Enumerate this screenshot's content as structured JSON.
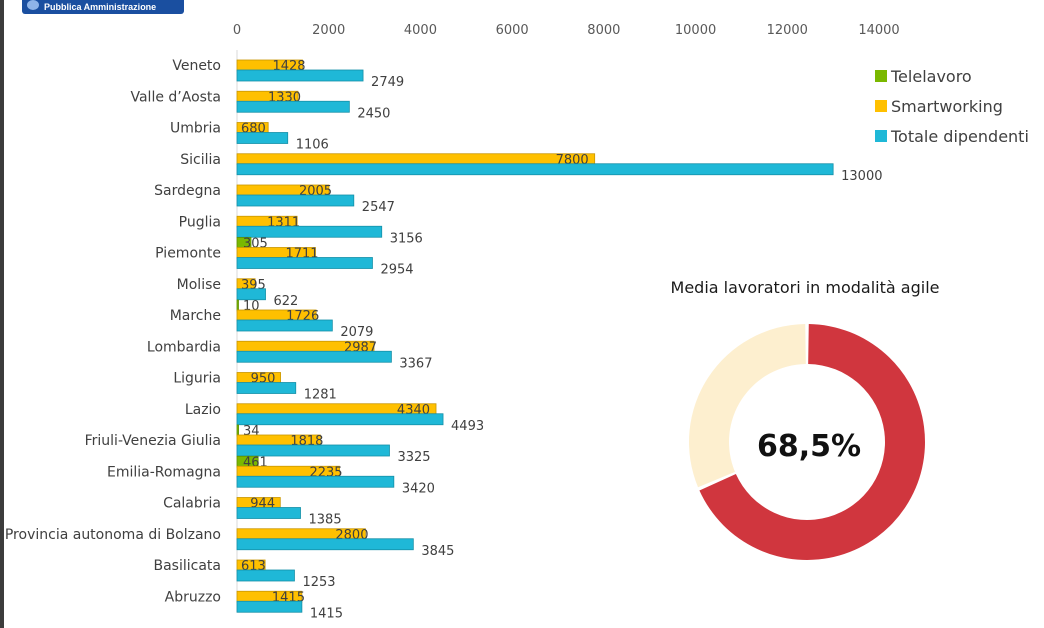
{
  "header": {
    "logo_text": "Pubblica Amministrazione"
  },
  "chart_data": [
    {
      "type": "bar",
      "orientation": "horizontal",
      "title": "",
      "xlabel": "",
      "ylabel": "",
      "xlim": [
        0,
        14000
      ],
      "ticks": [
        "0",
        "2000",
        "4000",
        "6000",
        "8000",
        "10000",
        "12000",
        "14000"
      ],
      "tick_values": [
        0,
        2000,
        4000,
        6000,
        8000,
        10000,
        12000,
        14000
      ],
      "axis_position": "top",
      "grid": false,
      "legend_position": "right",
      "categories": [
        "Veneto",
        "Valle d’Aosta",
        "Umbria",
        "Sicilia",
        "Sardegna",
        "Puglia",
        "Piemonte",
        "Molise",
        "Marche",
        "Lombardia",
        "Liguria",
        "Lazio",
        "Friuli-Venezia Giulia",
        "Emilia-Romagna",
        "Calabria",
        "Provincia autonoma di Bolzano",
        "Basilicata",
        "Abruzzo"
      ],
      "series": [
        {
          "name": "Telelavoro",
          "color": "#7ab800",
          "values": [
            null,
            null,
            null,
            null,
            null,
            null,
            305,
            null,
            10,
            null,
            null,
            null,
            34,
            461,
            null,
            null,
            null,
            null
          ],
          "labels": [
            null,
            null,
            null,
            null,
            null,
            null,
            "305",
            null,
            "10",
            null,
            null,
            null,
            "34",
            "461",
            null,
            null,
            null,
            null
          ]
        },
        {
          "name": "Smartworking",
          "color": "#ffc000",
          "values": [
            1428,
            1330,
            680,
            7800,
            2005,
            1311,
            1711,
            395,
            1726,
            2987,
            950,
            4340,
            1818,
            2235,
            944,
            2800,
            613,
            1415
          ],
          "labels": [
            "1428",
            "1330",
            "680",
            "7800",
            "2005",
            "1311",
            "1711",
            "395",
            "1726",
            "2987",
            "950",
            "4340",
            "1818",
            "2235",
            "944",
            "2800",
            "613",
            "1415"
          ]
        },
        {
          "name": "Totale dipendenti",
          "color": "#1fb8d7",
          "values": [
            2749,
            2450,
            1106,
            13000,
            2547,
            3156,
            2954,
            622,
            2079,
            3367,
            1281,
            4493,
            3325,
            3420,
            1385,
            3845,
            1253,
            1415
          ],
          "labels": [
            "2749",
            "2450",
            "1106",
            "13000",
            "2547",
            "3156",
            "2954",
            "622",
            "2079",
            "3367",
            "1281",
            "4493",
            "3325",
            "3420",
            "1385",
            "3845",
            "1253",
            "1415"
          ]
        }
      ]
    },
    {
      "type": "pie",
      "variant": "donut",
      "title": "Media lavoratori in modalità agile",
      "center_label": "68,5%",
      "slices": [
        {
          "name": "",
          "value": 68.5,
          "color": "#d0363e"
        },
        {
          "name": "",
          "value": 31.5,
          "color": "#fdefcf"
        }
      ]
    }
  ]
}
